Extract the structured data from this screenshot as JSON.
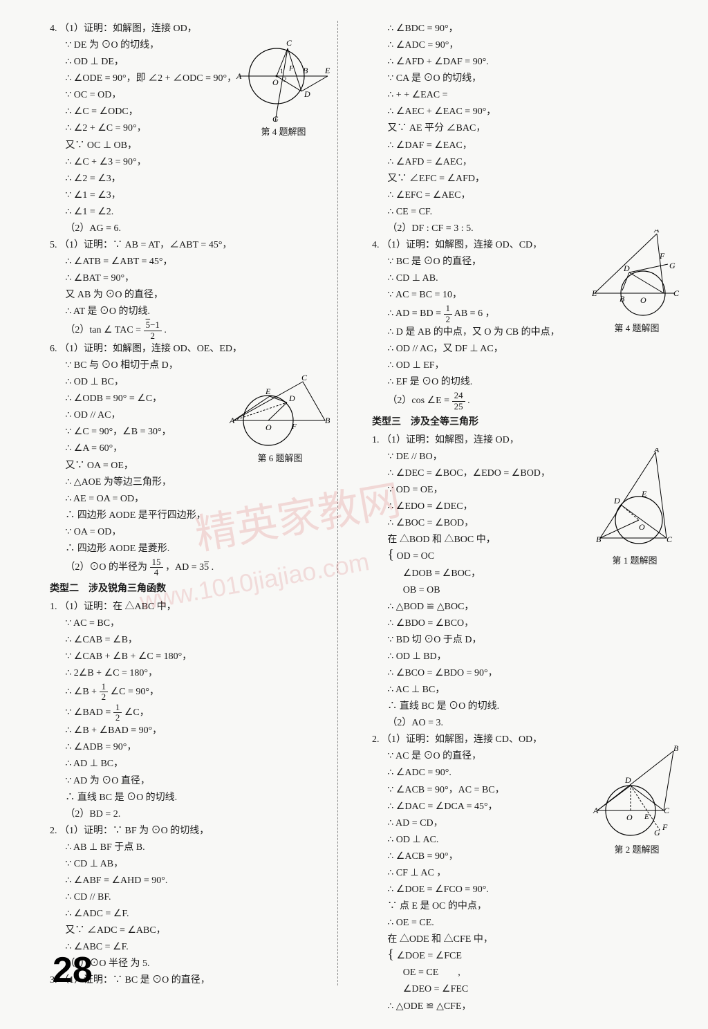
{
  "page_number": "28",
  "watermark_text1": "精英家教网",
  "watermark_text2": "www.1010jiajiao.com",
  "figcap4": "第 4 题解图",
  "figcap6": "第 6 题解图",
  "figcapR4": "第 4 题解图",
  "figcapR1": "第 1 题解图",
  "figcapR2": "第 2 题解图",
  "left": [
    {
      "cls": "",
      "t": "4. （1）证明：如解图，连接 OD，"
    },
    {
      "cls": "ind1",
      "t": "∵ DE 为 ⊙O 的切线，"
    },
    {
      "cls": "ind1",
      "t": "∴ OD ⊥ DE，"
    },
    {
      "cls": "ind1",
      "t": "∴ ∠ODE = 90°，即 ∠2 + ∠ODC = 90°，"
    },
    {
      "cls": "ind1",
      "t": "∵ OC = OD，"
    },
    {
      "cls": "ind1",
      "t": "∴ ∠C = ∠ODC，"
    },
    {
      "cls": "ind1",
      "t": "∴ ∠2 + ∠C = 90°，"
    },
    {
      "cls": "ind1",
      "t": "又∵ OC ⊥ OB，"
    },
    {
      "cls": "ind1",
      "t": "∴ ∠C + ∠3 = 90°，"
    },
    {
      "cls": "ind1",
      "t": "∴ ∠2 = ∠3，"
    },
    {
      "cls": "ind1",
      "t": "∵ ∠1 = ∠3，"
    },
    {
      "cls": "ind1",
      "t": "∴ ∠1 = ∠2."
    },
    {
      "cls": "ind1",
      "t": "（2）AG = 6."
    },
    {
      "cls": "",
      "t": "5. （1）证明：∵ AB = AT，∠ABT = 45°，"
    },
    {
      "cls": "ind1",
      "t": "∴ ∠ATB = ∠ABT = 45°，"
    },
    {
      "cls": "ind1",
      "t": "∴ ∠BAT = 90°，"
    },
    {
      "cls": "ind1",
      "t": "又 AB 为 ⊙O 的直径，"
    },
    {
      "cls": "ind1",
      "t": "∴ AT 是 ⊙O 的切线."
    },
    {
      "cls": "ind1",
      "html": "（2）tan ∠ TAC = <span class='frac'><span class='t'><span class='sqrt'>5</span>−1</span><span class='b'>2</span></span> ."
    },
    {
      "cls": "",
      "t": "6. （1）证明：如解图，连接 OD、OE、ED，"
    },
    {
      "cls": "ind1",
      "t": "∵ BC 与 ⊙O 相切于点 D，"
    },
    {
      "cls": "ind1",
      "t": "∴ OD ⊥ BC，"
    },
    {
      "cls": "ind1",
      "t": "∴ ∠ODB = 90° = ∠C，"
    },
    {
      "cls": "ind1",
      "t": "∴ OD // AC，"
    },
    {
      "cls": "ind1",
      "t": "∵ ∠C = 90°，∠B = 30°，"
    },
    {
      "cls": "ind1",
      "t": "∴ ∠A = 60°，"
    },
    {
      "cls": "ind1",
      "t": "又∵ OA = OE，"
    },
    {
      "cls": "ind1",
      "t": "∴ △AOE 为等边三角形，"
    },
    {
      "cls": "ind1",
      "t": "∴ AE = OA = OD，"
    },
    {
      "cls": "ind1",
      "t": "∴ 四边形 AODE 是平行四边形，"
    },
    {
      "cls": "ind1",
      "t": "∵ OA = OD，"
    },
    {
      "cls": "ind1",
      "t": "∴ 四边形 AODE 是菱形."
    },
    {
      "cls": "ind1",
      "html": "（2）⊙O 的半径为 <span class='frac'><span class='t'>15</span><span class='b'>4</span></span> ，AD = 3<span class='sqrt'>5</span> ."
    },
    {
      "cls": "heading",
      "t": "类型二　涉及锐角三角函数"
    },
    {
      "cls": "",
      "t": "1. （1）证明：在 △ABC 中，"
    },
    {
      "cls": "ind1",
      "t": "∵ AC = BC，"
    },
    {
      "cls": "ind1",
      "t": "∴ ∠CAB = ∠B，"
    },
    {
      "cls": "ind1",
      "t": "∵ ∠CAB + ∠B + ∠C = 180°，"
    },
    {
      "cls": "ind1",
      "t": "∴ 2∠B + ∠C = 180°，"
    },
    {
      "cls": "ind1",
      "html": "∴ ∠B + <span class='frac'><span class='t'>1</span><span class='b'>2</span></span> ∠C = 90°，"
    },
    {
      "cls": "ind1",
      "html": "∵ ∠BAD = <span class='frac'><span class='t'>1</span><span class='b'>2</span></span> ∠C，"
    },
    {
      "cls": "ind1",
      "t": "∴ ∠B + ∠BAD = 90°，"
    },
    {
      "cls": "ind1",
      "t": "∴ ∠ADB = 90°，"
    },
    {
      "cls": "ind1",
      "t": "∴ AD ⊥ BC，"
    },
    {
      "cls": "ind1",
      "t": "∵ AD 为 ⊙O 直径，"
    },
    {
      "cls": "ind1",
      "t": "∴ 直线 BC 是 ⊙O 的切线."
    },
    {
      "cls": "ind1",
      "t": "（2）BD = 2."
    },
    {
      "cls": "",
      "t": "2. （1）证明：∵ BF 为 ⊙O 的切线，"
    },
    {
      "cls": "ind1",
      "t": "∴ AB ⊥ BF 于点 B."
    },
    {
      "cls": "ind1",
      "t": "∵ CD ⊥ AB，"
    },
    {
      "cls": "ind1",
      "t": "∴ ∠ABF = ∠AHD = 90°."
    },
    {
      "cls": "ind1",
      "t": "∴ CD // BF."
    },
    {
      "cls": "ind1",
      "t": "∴ ∠ADC = ∠F."
    },
    {
      "cls": "ind1",
      "t": "又∵ ∠ADC = ∠ABC，"
    },
    {
      "cls": "ind1",
      "t": "∴ ∠ABC = ∠F."
    },
    {
      "cls": "ind1",
      "t": "（2）⊙O 半径 为 5."
    },
    {
      "cls": "",
      "t": "3. （1）证明：∵ BC 是 ⊙O 的直径，"
    }
  ],
  "right": [
    {
      "cls": "ind1",
      "t": "∴ ∠BDC = 90°，"
    },
    {
      "cls": "ind1",
      "t": "∴ ∠ADC = 90°，"
    },
    {
      "cls": "ind1",
      "t": "∴ ∠AFD + ∠DAF = 90°."
    },
    {
      "cls": "ind1",
      "t": "∵ CA 是 ⊙O 的切线，"
    },
    {
      "cls": "ind1",
      "t": "∴ + + ∠EAC ="
    },
    {
      "cls": "ind1",
      "t": "∴ ∠AEC + ∠EAC = 90°，"
    },
    {
      "cls": "ind1",
      "t": "又∵ AE 平分 ∠BAC，"
    },
    {
      "cls": "ind1",
      "t": "∴ ∠DAF = ∠EAC，"
    },
    {
      "cls": "ind1",
      "t": "∴ ∠AFD = ∠AEC，"
    },
    {
      "cls": "ind1",
      "t": "又∵ ∠EFC = ∠AFD，"
    },
    {
      "cls": "ind1",
      "t": "∴ ∠EFC = ∠AEC，"
    },
    {
      "cls": "ind1",
      "t": "∴ CE = CF."
    },
    {
      "cls": "ind1",
      "t": "（2）DF : CF = 3 : 5."
    },
    {
      "cls": "",
      "t": "4. （1）证明：如解图，连接 OD、CD，"
    },
    {
      "cls": "ind1",
      "t": "∵ BC 是 ⊙O 的直径，"
    },
    {
      "cls": "ind1",
      "t": "∴ CD ⊥ AB."
    },
    {
      "cls": "ind1",
      "t": "∵ AC = BC = 10，"
    },
    {
      "cls": "ind1",
      "html": "∴ AD = BD = <span class='frac'><span class='t'>1</span><span class='b'>2</span></span> AB = 6 ，"
    },
    {
      "cls": "ind1",
      "t": "∴ D 是 AB 的中点，又 O 为 CB 的中点，"
    },
    {
      "cls": "ind1",
      "t": "∴ OD // AC，又 DF ⊥ AC，"
    },
    {
      "cls": "ind1",
      "t": "∴ OD ⊥ EF，"
    },
    {
      "cls": "ind1",
      "t": "∴ EF 是 ⊙O 的切线."
    },
    {
      "cls": "ind1",
      "html": "（2）cos ∠E = <span class='frac'><span class='t'>24</span><span class='b'>25</span></span> ."
    },
    {
      "cls": "heading",
      "t": "类型三　涉及全等三角形"
    },
    {
      "cls": "",
      "t": "1. （1）证明：如解图，连接 OD，"
    },
    {
      "cls": "ind1",
      "t": "∵ DE // BO，"
    },
    {
      "cls": "ind1",
      "t": "∴ ∠DEC = ∠BOC，∠EDO = ∠BOD，"
    },
    {
      "cls": "ind1",
      "t": "∵ OD = OE，"
    },
    {
      "cls": "ind1",
      "t": "∴ ∠EDO = ∠DEC，"
    },
    {
      "cls": "ind1",
      "t": "∴ ∠BOC = ∠BOD，"
    },
    {
      "cls": "ind1",
      "t": "在 △BOD 和 △BOC 中，"
    },
    {
      "cls": "ind1",
      "html": "<span class='brace'>{</span> OD = OC"
    },
    {
      "cls": "ind2",
      "t": "∠DOB = ∠BOC，"
    },
    {
      "cls": "ind2",
      "t": "OB = OB"
    },
    {
      "cls": "ind1",
      "t": "∴ △BOD ≌ △BOC，"
    },
    {
      "cls": "ind1",
      "t": "∴ ∠BDO = ∠BCO，"
    },
    {
      "cls": "ind1",
      "t": "∵ BD 切 ⊙O 于点 D，"
    },
    {
      "cls": "ind1",
      "t": "∴ OD ⊥ BD，"
    },
    {
      "cls": "ind1",
      "t": "∴ ∠BCO = ∠BDO = 90°，"
    },
    {
      "cls": "ind1",
      "t": "∴ AC ⊥ BC，"
    },
    {
      "cls": "ind1",
      "t": "∴ 直线 BC 是 ⊙O 的切线."
    },
    {
      "cls": "ind1",
      "t": "（2）AO = 3."
    },
    {
      "cls": "",
      "t": "2. （1）证明：如解图，连接 CD、OD，"
    },
    {
      "cls": "ind1",
      "t": "∵ AC 是 ⊙O 的直径，"
    },
    {
      "cls": "ind1",
      "t": "∴ ∠ADC = 90°."
    },
    {
      "cls": "ind1",
      "t": "∵ ∠ACB = 90°，AC = BC，"
    },
    {
      "cls": "ind1",
      "t": "∴ ∠DAC = ∠DCA = 45°，"
    },
    {
      "cls": "ind1",
      "t": "∴ AD = CD，"
    },
    {
      "cls": "ind1",
      "t": "∴ OD ⊥ AC."
    },
    {
      "cls": "ind1",
      "t": "∴ ∠ACB = 90°，"
    },
    {
      "cls": "ind1",
      "t": "∴ CF ⊥ AC ，"
    },
    {
      "cls": "ind1",
      "t": "∴ ∠DOE = ∠FCO = 90°."
    },
    {
      "cls": "ind1",
      "t": "∵ 点 E 是 OC 的中点，"
    },
    {
      "cls": "ind1",
      "t": "∴ OE = CE."
    },
    {
      "cls": "ind1",
      "t": "在 △ODE 和 △CFE 中，"
    },
    {
      "cls": "ind1",
      "html": "<span class='brace'>{</span> ∠DOE = ∠FCE"
    },
    {
      "cls": "ind2",
      "t": "OE = CE　　,"
    },
    {
      "cls": "ind2",
      "t": "∠DEO = ∠FEC"
    },
    {
      "cls": "ind1",
      "t": "∴ △ODE ≌ △CFE，"
    }
  ]
}
